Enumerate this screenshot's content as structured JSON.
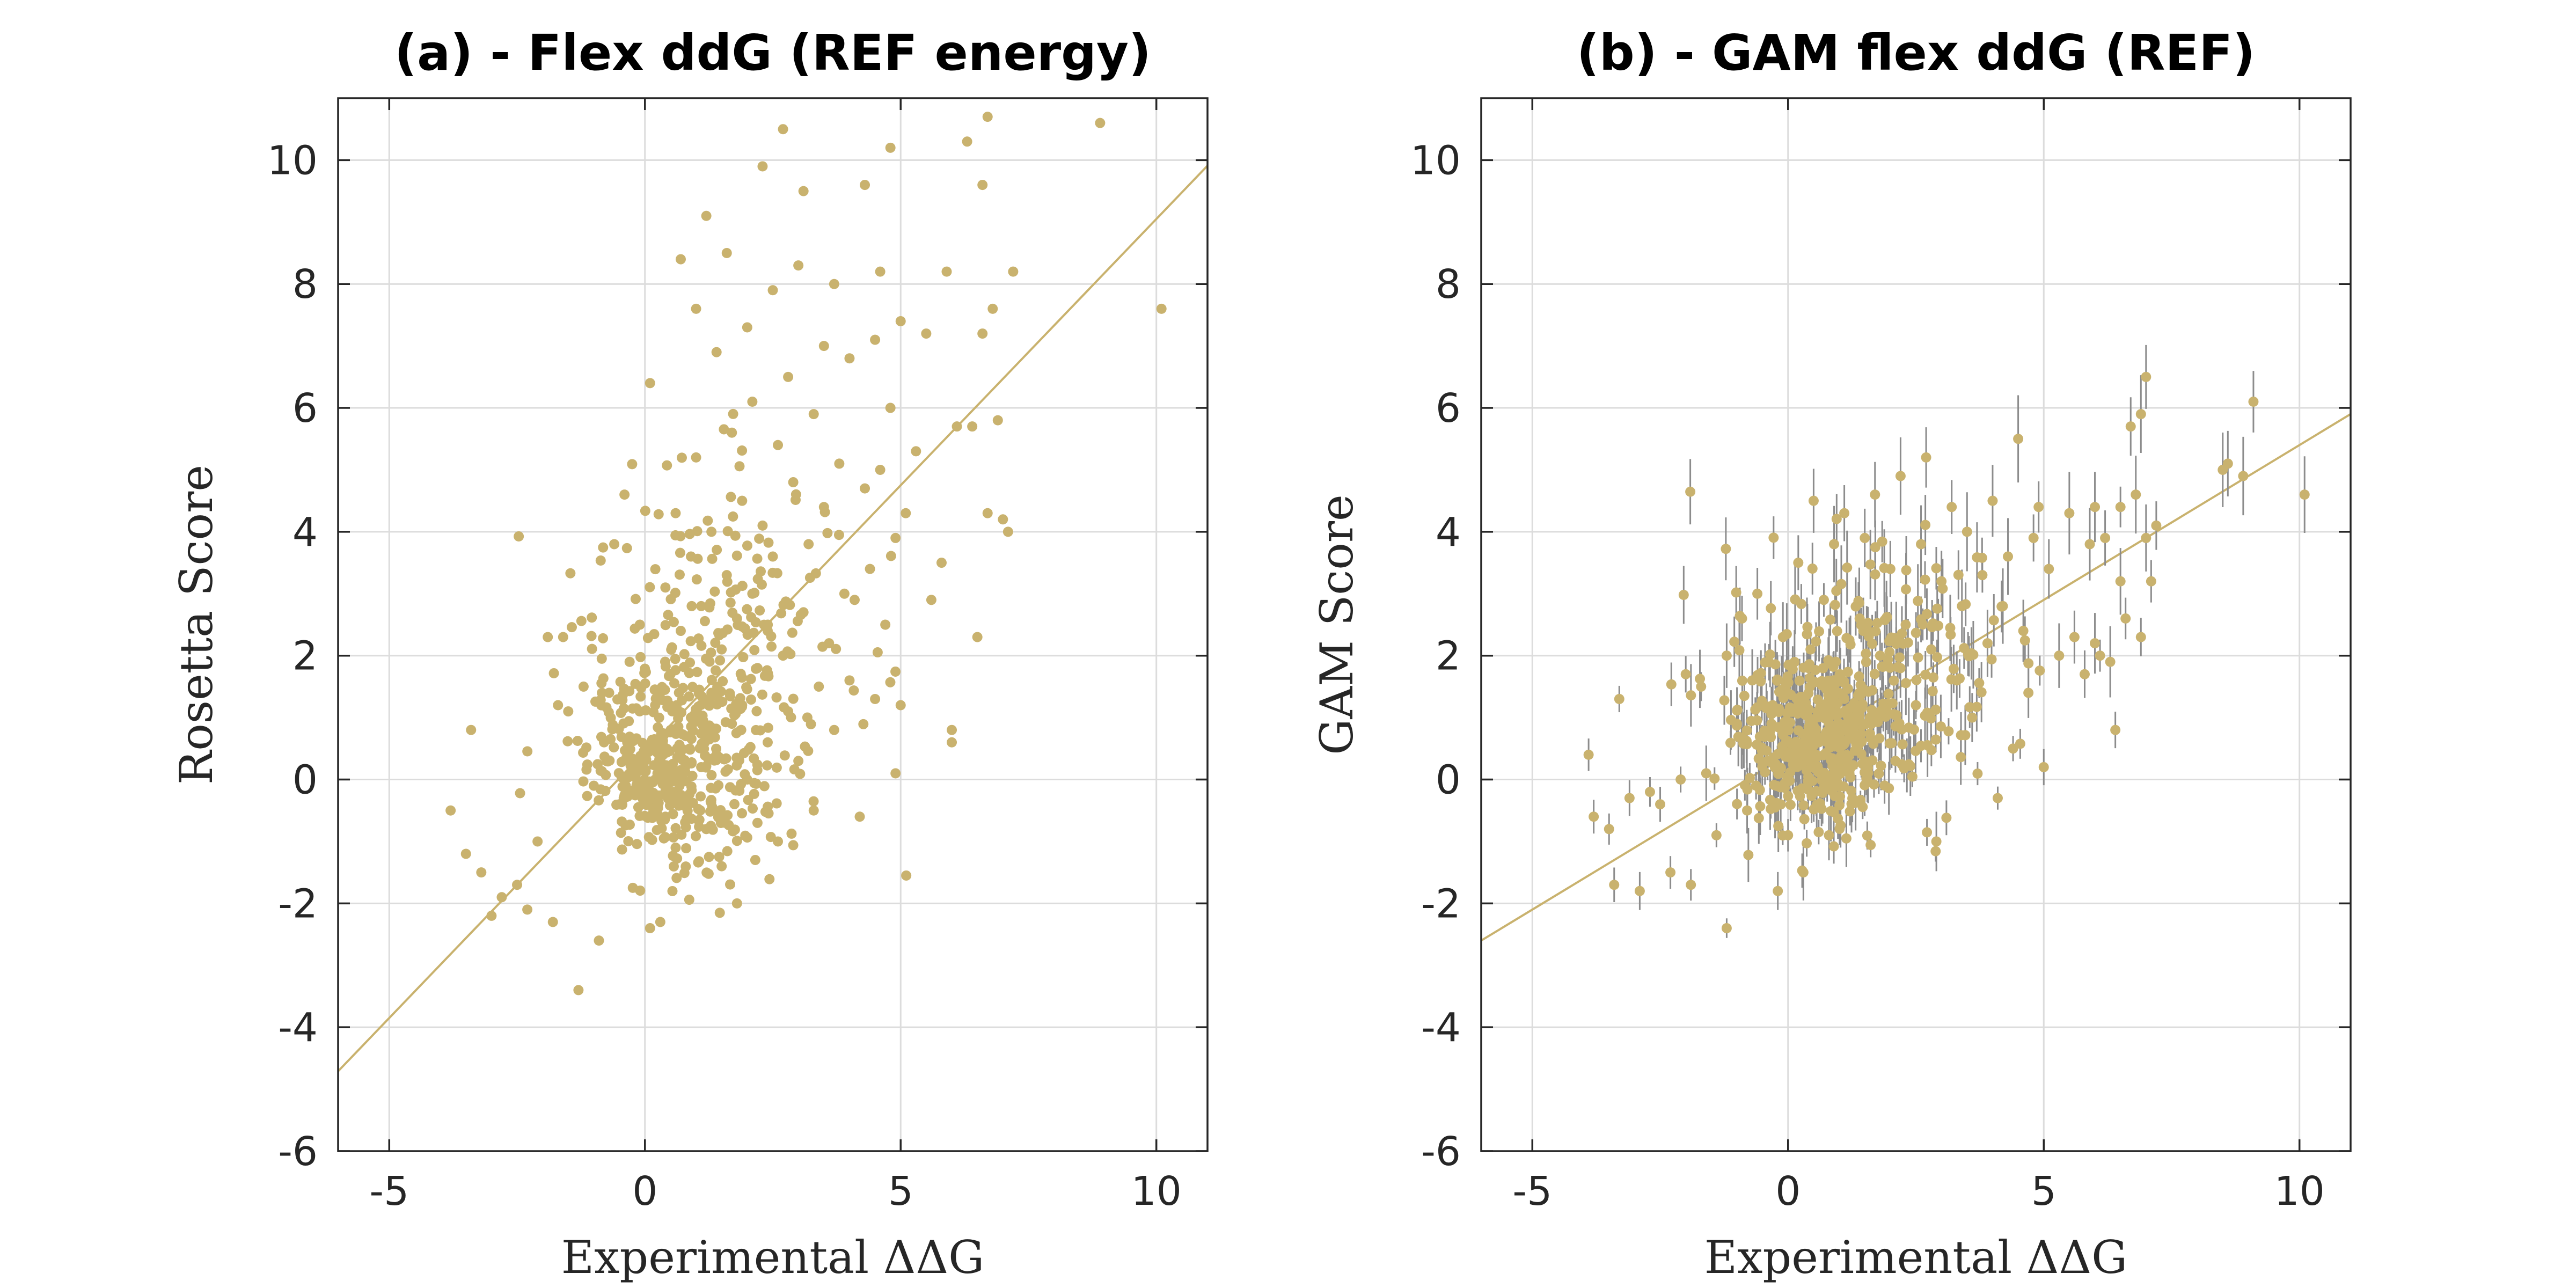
{
  "figure": {
    "color": "#C9B26E",
    "errorbar_color": "#8C8C8C"
  },
  "chart_data": [
    {
      "type": "scatter",
      "panel": "a",
      "title": "(a) - Flex ddG (REF energy)",
      "xlabel": "Experimental ΔΔG",
      "ylabel": "Rosetta Score",
      "xlim": [
        -6,
        11
      ],
      "ylim": [
        -6,
        11
      ],
      "xticks": [
        -5,
        0,
        5,
        10
      ],
      "yticks": [
        -6,
        -4,
        -2,
        0,
        2,
        4,
        6,
        8,
        10
      ],
      "xtick_labels": [
        "-5",
        "0",
        "5",
        "10"
      ],
      "ytick_labels": [
        "-6",
        "-4",
        "-2",
        "0",
        "2",
        "4",
        "6",
        "8",
        "10"
      ],
      "grid": true,
      "fit_line": {
        "slope": 0.86,
        "intercept": 0.45
      },
      "points": [
        [
          -3.8,
          -0.5
        ],
        [
          -3.4,
          0.8
        ],
        [
          -3.5,
          -1.2
        ],
        [
          -3.2,
          -1.5
        ],
        [
          -3.0,
          -2.2
        ],
        [
          -2.8,
          -1.9
        ],
        [
          -2.5,
          -1.7
        ],
        [
          -2.3,
          -2.1
        ],
        [
          -2.1,
          -1.0
        ],
        [
          -1.9,
          2.3
        ],
        [
          -1.8,
          -2.3
        ],
        [
          -1.7,
          1.2
        ],
        [
          -1.6,
          2.3
        ],
        [
          -1.5,
          1.1
        ],
        [
          -1.3,
          -3.4
        ],
        [
          -1.2,
          1.5
        ],
        [
          -1.0,
          -0.1
        ],
        [
          -0.9,
          -2.6
        ],
        [
          -0.8,
          0.6
        ],
        [
          -0.7,
          1.4
        ],
        [
          -0.6,
          3.8
        ],
        [
          -0.5,
          -0.4
        ],
        [
          -0.4,
          4.6
        ],
        [
          -0.3,
          1.9
        ],
        [
          -0.2,
          0.3
        ],
        [
          -0.1,
          2.5
        ],
        [
          0.0,
          -0.2
        ],
        [
          0.0,
          0.3
        ],
        [
          0.1,
          -2.4
        ],
        [
          0.1,
          6.4
        ],
        [
          0.2,
          0.0
        ],
        [
          0.2,
          1.2
        ],
        [
          0.3,
          -2.3
        ],
        [
          0.3,
          0.5
        ],
        [
          0.4,
          3.1
        ],
        [
          0.4,
          -0.6
        ],
        [
          0.5,
          1.7
        ],
        [
          0.5,
          0.1
        ],
        [
          0.6,
          4.3
        ],
        [
          0.6,
          -1.1
        ],
        [
          0.7,
          2.4
        ],
        [
          0.7,
          8.4
        ],
        [
          0.8,
          0.7
        ],
        [
          0.8,
          -0.3
        ],
        [
          0.9,
          3.6
        ],
        [
          0.9,
          1.0
        ],
        [
          1.0,
          5.2
        ],
        [
          1.0,
          7.6
        ],
        [
          1.1,
          0.2
        ],
        [
          1.1,
          2.8
        ],
        [
          1.2,
          -0.8
        ],
        [
          1.2,
          9.1
        ],
        [
          1.3,
          4.0
        ],
        [
          1.3,
          1.4
        ],
        [
          1.4,
          6.9
        ],
        [
          1.4,
          0.4
        ],
        [
          1.5,
          2.1
        ],
        [
          1.5,
          -1.4
        ],
        [
          1.6,
          8.5
        ],
        [
          1.6,
          3.3
        ],
        [
          1.7,
          0.9
        ],
        [
          1.7,
          5.6
        ],
        [
          1.8,
          -2.0
        ],
        [
          1.8,
          2.6
        ],
        [
          1.9,
          4.5
        ],
        [
          1.9,
          1.2
        ],
        [
          2.0,
          7.3
        ],
        [
          2.0,
          0.0
        ],
        [
          2.1,
          3.0
        ],
        [
          2.1,
          6.1
        ],
        [
          2.2,
          1.8
        ],
        [
          2.2,
          -0.7
        ],
        [
          2.3,
          9.9
        ],
        [
          2.3,
          4.1
        ],
        [
          2.4,
          2.4
        ],
        [
          2.4,
          0.6
        ],
        [
          2.5,
          7.9
        ],
        [
          2.5,
          3.6
        ],
        [
          2.6,
          5.4
        ],
        [
          2.6,
          -1.0
        ],
        [
          2.7,
          2.0
        ],
        [
          2.7,
          10.5
        ],
        [
          2.8,
          6.5
        ],
        [
          2.8,
          1.1
        ],
        [
          2.9,
          4.8
        ],
        [
          3.0,
          8.3
        ],
        [
          3.0,
          0.3
        ],
        [
          3.1,
          2.7
        ],
        [
          3.1,
          9.5
        ],
        [
          3.2,
          3.8
        ],
        [
          3.3,
          5.9
        ],
        [
          3.3,
          -0.5
        ],
        [
          3.4,
          1.5
        ],
        [
          3.5,
          7.0
        ],
        [
          3.5,
          4.4
        ],
        [
          3.6,
          2.2
        ],
        [
          3.7,
          8.0
        ],
        [
          3.7,
          0.8
        ],
        [
          3.8,
          5.1
        ],
        [
          3.9,
          3.0
        ],
        [
          4.0,
          6.8
        ],
        [
          4.0,
          1.6
        ],
        [
          4.1,
          2.9
        ],
        [
          4.2,
          -0.6
        ],
        [
          4.3,
          9.6
        ],
        [
          4.3,
          4.7
        ],
        [
          4.4,
          3.4
        ],
        [
          4.5,
          7.1
        ],
        [
          4.5,
          1.3
        ],
        [
          4.6,
          5.0
        ],
        [
          4.6,
          8.2
        ],
        [
          4.7,
          2.5
        ],
        [
          4.8,
          10.2
        ],
        [
          4.8,
          6.0
        ],
        [
          4.9,
          3.9
        ],
        [
          4.9,
          0.1
        ],
        [
          5.0,
          7.4
        ],
        [
          5.0,
          1.2
        ],
        [
          5.1,
          4.3
        ],
        [
          5.3,
          5.3
        ],
        [
          5.5,
          7.2
        ],
        [
          5.6,
          2.9
        ],
        [
          5.8,
          3.5
        ],
        [
          5.9,
          8.2
        ],
        [
          6.0,
          0.8
        ],
        [
          6.0,
          0.6
        ],
        [
          6.1,
          5.7
        ],
        [
          6.3,
          10.3
        ],
        [
          6.4,
          5.7
        ],
        [
          6.5,
          2.3
        ],
        [
          6.6,
          7.2
        ],
        [
          6.6,
          9.6
        ],
        [
          6.7,
          10.7
        ],
        [
          6.7,
          4.3
        ],
        [
          6.8,
          7.6
        ],
        [
          6.9,
          5.8
        ],
        [
          7.0,
          4.2
        ],
        [
          7.1,
          4.0
        ],
        [
          7.2,
          8.2
        ],
        [
          8.9,
          10.6
        ],
        [
          10.1,
          7.6
        ]
      ],
      "cluster": {
        "center": [
          0.5,
          0.2
        ],
        "count": 330,
        "spread": [
          0.8,
          0.7
        ]
      },
      "cloud": {
        "center": [
          1.3,
          1.8
        ],
        "count": 260,
        "spread": [
          1.3,
          1.6
        ]
      }
    },
    {
      "type": "scatter",
      "panel": "b",
      "title": "(b) - GAM flex ddG (REF)",
      "xlabel": "Experimental ΔΔG",
      "ylabel": "GAM Score",
      "xlim": [
        -6,
        11
      ],
      "ylim": [
        -6,
        11
      ],
      "xticks": [
        -5,
        0,
        5,
        10
      ],
      "yticks": [
        -6,
        -4,
        -2,
        0,
        2,
        4,
        6,
        8,
        10
      ],
      "xtick_labels": [
        "-5",
        "0",
        "5",
        "10"
      ],
      "ytick_labels": [
        "-6",
        "-4",
        "-2",
        "0",
        "2",
        "4",
        "6",
        "8",
        "10"
      ],
      "grid": true,
      "error_bars": true,
      "fit_line": {
        "slope": 0.5,
        "intercept": 0.4
      },
      "points": [
        [
          -3.9,
          0.4
        ],
        [
          -3.8,
          -0.6
        ],
        [
          -3.5,
          -0.8
        ],
        [
          -3.4,
          -1.7
        ],
        [
          -3.3,
          1.3
        ],
        [
          -3.1,
          -0.3
        ],
        [
          -2.9,
          -1.8
        ],
        [
          -2.7,
          -0.2
        ],
        [
          -2.5,
          -0.4
        ],
        [
          -2.3,
          -1.5
        ],
        [
          -2.1,
          0.0
        ],
        [
          -2.0,
          1.7
        ],
        [
          -1.9,
          -1.7
        ],
        [
          -1.7,
          1.5
        ],
        [
          -1.6,
          0.1
        ],
        [
          -1.4,
          -0.9
        ],
        [
          -1.2,
          -2.4
        ],
        [
          -1.2,
          2.0
        ],
        [
          -1.0,
          0.9
        ],
        [
          -0.9,
          2.6
        ],
        [
          -0.8,
          -0.5
        ],
        [
          -0.7,
          1.6
        ],
        [
          -0.6,
          3.0
        ],
        [
          -0.4,
          0.3
        ],
        [
          -0.3,
          1.2
        ],
        [
          -0.2,
          -1.8
        ],
        [
          -0.1,
          2.3
        ],
        [
          0.0,
          -0.9
        ],
        [
          0.2,
          3.5
        ],
        [
          0.3,
          -1.5
        ],
        [
          0.4,
          1.8
        ],
        [
          0.5,
          4.5
        ],
        [
          0.6,
          0.6
        ],
        [
          0.7,
          2.9
        ],
        [
          0.8,
          -0.9
        ],
        [
          0.9,
          3.8
        ],
        [
          1.0,
          1.4
        ],
        [
          1.1,
          4.3
        ],
        [
          1.2,
          0.1
        ],
        [
          1.4,
          2.6
        ],
        [
          1.5,
          3.9
        ],
        [
          1.6,
          1.0
        ],
        [
          1.7,
          4.6
        ],
        [
          1.8,
          2.0
        ],
        [
          2.0,
          3.4
        ],
        [
          2.1,
          0.3
        ],
        [
          2.2,
          4.9
        ],
        [
          2.3,
          2.5
        ],
        [
          2.5,
          1.2
        ],
        [
          2.6,
          3.8
        ],
        [
          2.7,
          5.2
        ],
        [
          2.8,
          2.1
        ],
        [
          2.9,
          -1.0
        ],
        [
          3.0,
          3.2
        ],
        [
          3.2,
          4.4
        ],
        [
          3.3,
          1.6
        ],
        [
          3.4,
          2.8
        ],
        [
          3.5,
          4.0
        ],
        [
          3.6,
          1.0
        ],
        [
          3.8,
          3.3
        ],
        [
          3.9,
          2.2
        ],
        [
          4.0,
          4.5
        ],
        [
          4.1,
          -0.3
        ],
        [
          4.2,
          2.8
        ],
        [
          4.3,
          3.6
        ],
        [
          4.4,
          0.5
        ],
        [
          4.5,
          5.5
        ],
        [
          4.6,
          2.4
        ],
        [
          4.7,
          1.4
        ],
        [
          4.8,
          3.9
        ],
        [
          4.9,
          4.4
        ],
        [
          5.0,
          0.2
        ],
        [
          5.1,
          3.4
        ],
        [
          5.3,
          2.0
        ],
        [
          5.5,
          4.3
        ],
        [
          5.6,
          2.3
        ],
        [
          5.8,
          1.7
        ],
        [
          5.9,
          3.8
        ],
        [
          6.0,
          4.4
        ],
        [
          6.0,
          2.2
        ],
        [
          6.1,
          2.0
        ],
        [
          6.2,
          3.9
        ],
        [
          6.3,
          1.9
        ],
        [
          6.4,
          0.8
        ],
        [
          6.5,
          4.4
        ],
        [
          6.5,
          3.2
        ],
        [
          6.6,
          2.6
        ],
        [
          6.7,
          5.7
        ],
        [
          6.8,
          4.6
        ],
        [
          6.9,
          2.3
        ],
        [
          6.9,
          5.9
        ],
        [
          7.0,
          6.5
        ],
        [
          7.0,
          3.9
        ],
        [
          7.1,
          3.2
        ],
        [
          7.2,
          4.1
        ],
        [
          8.5,
          5.0
        ],
        [
          8.6,
          5.1
        ],
        [
          8.9,
          4.9
        ],
        [
          9.1,
          6.1
        ],
        [
          10.1,
          4.6
        ]
      ],
      "cluster": {
        "center": [
          0.5,
          0.5
        ],
        "count": 330,
        "spread": [
          0.7,
          0.6
        ]
      },
      "cloud": {
        "center": [
          1.5,
          1.5
        ],
        "count": 250,
        "spread": [
          1.3,
          1.1
        ]
      }
    }
  ]
}
